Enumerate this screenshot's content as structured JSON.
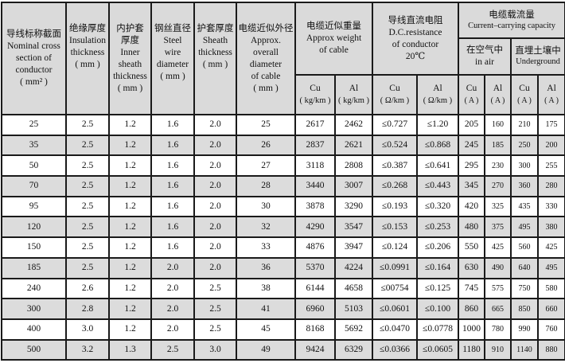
{
  "headers": {
    "nominal": {
      "zh": "导线标称截面",
      "en1": "Nominal cross",
      "en2": "section of",
      "en3": "conductor",
      "unit": "( mm² )"
    },
    "insulation": {
      "zh": "绝缘厚度",
      "en1": "Insulation",
      "en2": "thickness",
      "unit": "( mm )"
    },
    "inner_sheath": {
      "zh1": "内护套",
      "zh2": "厚度",
      "en1": "Inner",
      "en2": "sheath",
      "en3": "thickness",
      "unit": "( mm )"
    },
    "steel_wire": {
      "zh": "钢丝直径",
      "en1": "Steel",
      "en2": "wire",
      "en3": "diameter",
      "unit": "( mm )"
    },
    "sheath": {
      "zh": "护套厚度",
      "en1": "Sheath",
      "en2": "thickness",
      "unit": "( mm )"
    },
    "diameter": {
      "zh": "电缆近似外径",
      "en1": "Approx.",
      "en2": "overall",
      "en3": "diameter",
      "en4": "of cable",
      "unit": "( mm )"
    },
    "weight": {
      "zh": "电缆近似重量",
      "en1": "Approx weight",
      "en2": "of cable",
      "cu": "Cu",
      "al": "Al",
      "unit": "( kg/km )"
    },
    "resistance": {
      "zh": "导线直流电阻",
      "en1": "D.C.resistance",
      "en2": "of conductor",
      "en3": "20℃",
      "cu": "Cu",
      "al": "Al",
      "unit": "( Ω/km )"
    },
    "current": {
      "zh": "电缆载流量",
      "en": "Current–carrying capacity",
      "air_zh": "在空气中",
      "air_en": "in air",
      "ground_zh": "直埋土壤中",
      "ground_en": "Underground",
      "cu": "Cu",
      "al": "Al",
      "unit": "( A )"
    }
  },
  "rows": [
    [
      "25",
      "2.5",
      "1.2",
      "1.6",
      "2.0",
      "25",
      "2617",
      "2462",
      "≤0.727",
      "≤1.20",
      "205",
      "160",
      "210",
      "175"
    ],
    [
      "35",
      "2.5",
      "1.2",
      "1.6",
      "2.0",
      "26",
      "2837",
      "2621",
      "≤0.524",
      "≤0.868",
      "245",
      "185",
      "250",
      "200"
    ],
    [
      "50",
      "2.5",
      "1.2",
      "1.6",
      "2.0",
      "27",
      "3118",
      "2808",
      "≤0.387",
      "≤0.641",
      "295",
      "230",
      "300",
      "255"
    ],
    [
      "70",
      "2.5",
      "1.2",
      "1.6",
      "2.0",
      "28",
      "3440",
      "3007",
      "≤0.268",
      "≤0.443",
      "345",
      "270",
      "360",
      "280"
    ],
    [
      "95",
      "2.5",
      "1.2",
      "1.6",
      "2.0",
      "30",
      "3878",
      "3290",
      "≤0.193",
      "≤0.320",
      "420",
      "325",
      "435",
      "330"
    ],
    [
      "120",
      "2.5",
      "1.2",
      "1.6",
      "2.0",
      "32",
      "4290",
      "3547",
      "≤0.153",
      "≤0.253",
      "480",
      "375",
      "495",
      "380"
    ],
    [
      "150",
      "2.5",
      "1.2",
      "1.6",
      "2.0",
      "33",
      "4876",
      "3947",
      "≤0.124",
      "≤0.206",
      "550",
      "425",
      "560",
      "425"
    ],
    [
      "185",
      "2.5",
      "1.2",
      "2.0",
      "2.0",
      "36",
      "5370",
      "4224",
      "≤0.0991",
      "≤0.164",
      "630",
      "490",
      "640",
      "495"
    ],
    [
      "240",
      "2.6",
      "1.2",
      "2.0",
      "2.5",
      "38",
      "6144",
      "4658",
      "≤00754",
      "≤0.125",
      "745",
      "575",
      "750",
      "580"
    ],
    [
      "300",
      "2.8",
      "1.2",
      "2.0",
      "2.5",
      "41",
      "6960",
      "5103",
      "≤0.0601",
      "≤0.100",
      "860",
      "665",
      "850",
      "660"
    ],
    [
      "400",
      "3.0",
      "1.2",
      "2.0",
      "2.5",
      "45",
      "8168",
      "5692",
      "≤0.0470",
      "≤0.0778",
      "1000",
      "780",
      "990",
      "760"
    ],
    [
      "500",
      "3.2",
      "1.3",
      "2.5",
      "3.0",
      "49",
      "9424",
      "6329",
      "≤0.0366",
      "≤0.0605",
      "1180",
      "910",
      "1140",
      "880"
    ]
  ]
}
